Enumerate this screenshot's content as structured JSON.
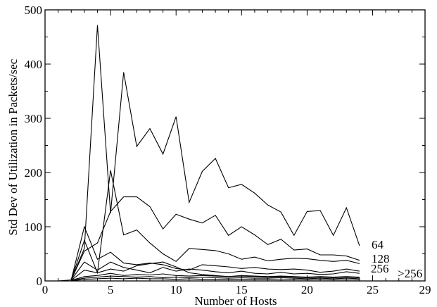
{
  "chart_data": {
    "type": "line",
    "xlabel": "Number of Hosts",
    "ylabel": "Std Dev of Utilization in Packets/sec",
    "xlim": [
      0,
      29
    ],
    "ylim": [
      0,
      500
    ],
    "x_ticks": [
      0,
      5,
      10,
      15,
      20,
      25,
      29
    ],
    "y_ticks": [
      0,
      100,
      200,
      300,
      400,
      500
    ],
    "grid": false,
    "series": [
      {
        "name": "64",
        "x": [
          1,
          2,
          3,
          4,
          5,
          6,
          7,
          8,
          9,
          10,
          11,
          12,
          13,
          14,
          15,
          16,
          17,
          18,
          19,
          20,
          21,
          22,
          23,
          24
        ],
        "y": [
          0,
          2,
          60,
          472,
          125,
          385,
          248,
          281,
          234,
          303,
          145,
          202,
          226,
          172,
          178,
          162,
          140,
          127,
          84,
          128,
          130,
          84,
          135,
          65
        ]
      },
      {
        "name": "",
        "x": [
          2,
          3,
          4,
          5,
          6,
          7,
          8,
          9,
          10,
          11,
          12,
          13,
          14,
          15,
          16,
          17,
          18,
          19,
          20,
          21,
          22,
          23,
          24
        ],
        "y": [
          2,
          75,
          15,
          204,
          85,
          94,
          70,
          50,
          36,
          60,
          58,
          56,
          50,
          40,
          44,
          37,
          40,
          42,
          41,
          38,
          36,
          38,
          32
        ]
      },
      {
        "name": "128",
        "x": [
          2,
          3,
          4,
          5,
          6,
          7,
          8,
          9,
          10,
          11,
          12,
          13,
          14,
          15,
          16,
          17,
          18,
          19,
          20,
          21,
          22,
          23,
          24
        ],
        "y": [
          2,
          55,
          70,
          128,
          155,
          155,
          137,
          96,
          123,
          114,
          107,
          121,
          84,
          100,
          85,
          67,
          77,
          57,
          59,
          48,
          48,
          46,
          38
        ]
      },
      {
        "name": "",
        "x": [
          2,
          3,
          4,
          5,
          6,
          7,
          8,
          9,
          10,
          11,
          12,
          13,
          14,
          15,
          16,
          17,
          18,
          19,
          20,
          21,
          22,
          23,
          24
        ],
        "y": [
          2,
          100,
          40,
          53,
          33,
          30,
          33,
          30,
          23,
          20,
          30,
          28,
          26,
          23,
          25,
          22,
          21,
          22,
          20,
          16,
          18,
          22,
          18
        ]
      },
      {
        "name": "256",
        "x": [
          2,
          3,
          4,
          5,
          6,
          7,
          8,
          9,
          10,
          11,
          12,
          13,
          14,
          15,
          16,
          17,
          18,
          19,
          20,
          21,
          22,
          23,
          24
        ],
        "y": [
          2,
          35,
          20,
          35,
          25,
          20,
          15,
          25,
          18,
          22,
          20,
          17,
          15,
          18,
          14,
          13,
          16,
          13,
          14,
          12,
          13,
          17,
          14
        ]
      },
      {
        "name": "",
        "x": [
          2,
          3,
          4,
          5,
          6,
          7,
          8,
          9,
          10,
          11,
          12,
          13,
          14,
          15,
          16,
          17,
          18,
          19,
          20,
          21,
          22,
          23,
          24
        ],
        "y": [
          1,
          20,
          15,
          22,
          18,
          28,
          32,
          35,
          26,
          15,
          12,
          10,
          8,
          10,
          9,
          8,
          9,
          8,
          7,
          8,
          7,
          8,
          7
        ]
      },
      {
        "name": "",
        "x": [
          2,
          3,
          4,
          5,
          6,
          7,
          8,
          9,
          10,
          11,
          12,
          13,
          14,
          15,
          16,
          17,
          18,
          19,
          20,
          21,
          22,
          23,
          24
        ],
        "y": [
          1,
          8,
          10,
          14,
          10,
          12,
          11,
          13,
          10,
          9,
          10,
          9,
          8,
          9,
          8,
          7,
          8,
          7,
          6,
          7,
          6,
          7,
          6
        ]
      },
      {
        "name": ">256",
        "x": [
          2,
          3,
          4,
          5,
          6,
          7,
          8,
          9,
          10,
          11,
          12,
          13,
          14,
          15,
          16,
          17,
          18,
          19,
          20,
          21,
          22,
          23,
          24
        ],
        "y": [
          1,
          5,
          7,
          9,
          8,
          7,
          8,
          6,
          7,
          6,
          7,
          6,
          5,
          6,
          5,
          5,
          6,
          5,
          4,
          5,
          4,
          5,
          4
        ]
      },
      {
        "name": "",
        "x": [
          2,
          3,
          4,
          5,
          6,
          7,
          8,
          9,
          10,
          11,
          12,
          13,
          14,
          15,
          16,
          17,
          18,
          19,
          20,
          21,
          22,
          23,
          24
        ],
        "y": [
          0,
          3,
          4,
          5,
          4,
          5,
          4,
          4,
          3,
          4,
          3,
          3,
          3,
          3,
          3,
          3,
          2,
          3,
          2,
          3,
          2,
          2,
          2
        ]
      }
    ],
    "annotations": [
      "64",
      "128",
      "256",
      ">256"
    ]
  }
}
